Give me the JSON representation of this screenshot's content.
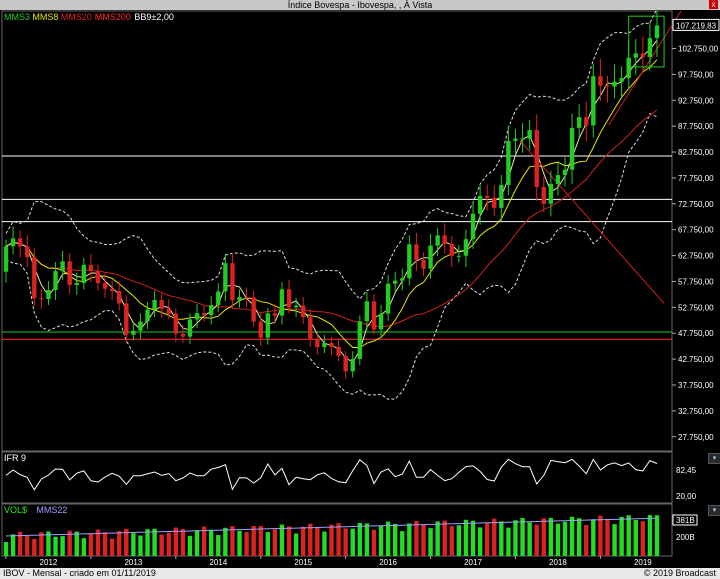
{
  "window": {
    "title": "Índice Bovespa - Ibovespa, , À Vista",
    "close_label": "x"
  },
  "footer": {
    "left": "IBOV - Mensal - criado em 01/11/2019",
    "right": "© 2019 Broadcast"
  },
  "legend": {
    "main": [
      {
        "label": "MMS3",
        "color": "#22cc22"
      },
      {
        "label": "MMS8",
        "color": "#e6e600"
      },
      {
        "label": "MMS20",
        "color": "#dd2222"
      },
      {
        "label": "MMS200",
        "color": "#ff2a2a"
      },
      {
        "label": "BB9±2,00",
        "color": "#ffffff"
      }
    ],
    "rsi": {
      "label": "IFR 9",
      "color": "#ffffff"
    },
    "volume": [
      {
        "label": "VOL$",
        "color": "#22ee22"
      },
      {
        "label": "MMS22",
        "color": "#a0a0ff"
      }
    ]
  },
  "chart_data": {
    "type": "candlestick",
    "title": "Índice Bovespa - Ibovespa, , À Vista",
    "period": "Mensal",
    "x_ticks": [
      "2012",
      "2013",
      "2014",
      "2015",
      "2016",
      "2017",
      "2018",
      "2019"
    ],
    "y_ticks": [
      "27.750,00",
      "32.750,00",
      "37.750,00",
      "42.750,00",
      "47.750,00",
      "52.750,00",
      "57.750,00",
      "62.750,00",
      "67.750,00",
      "72.750,00",
      "77.750,00",
      "82.750,00",
      "87.750,00",
      "92.750,00",
      "97.750,00",
      "102.750,00"
    ],
    "ylim": [
      25000,
      110000
    ],
    "last_price": "107.219,83",
    "horizontal_levels": [
      {
        "value": 82000,
        "color": "#ffffff"
      },
      {
        "value": 73600,
        "color": "#ffffff"
      },
      {
        "value": 69300,
        "color": "#ffffff"
      },
      {
        "value": 48000,
        "color": "#22cc22"
      },
      {
        "value": 46600,
        "color": "#ff3030"
      }
    ],
    "trend_lines": [
      {
        "color": "#cc2222",
        "points": [
          [
            2018.05,
            85000
          ],
          [
            2019.75,
            53500
          ]
        ]
      },
      {
        "color": "#cc2222",
        "points": [
          [
            2019.1,
            88000
          ],
          [
            2019.95,
            110000
          ]
        ]
      }
    ],
    "candles": [
      [
        59620,
        64540
      ],
      [
        64540,
        66070
      ],
      [
        66070,
        64510
      ],
      [
        64510,
        62450
      ],
      [
        62450,
        54490
      ],
      [
        54490,
        54350
      ],
      [
        54350,
        56100
      ],
      [
        56100,
        59760
      ],
      [
        59760,
        61640
      ],
      [
        61640,
        57070
      ],
      [
        57070,
        57470
      ],
      [
        57470,
        60950
      ],
      [
        60950,
        59760
      ],
      [
        59760,
        57420
      ],
      [
        57420,
        56350
      ],
      [
        56350,
        55910
      ],
      [
        55910,
        53510
      ],
      [
        53510,
        47460
      ],
      [
        47460,
        48230
      ],
      [
        48230,
        50010
      ],
      [
        50010,
        52340
      ],
      [
        52340,
        54160
      ],
      [
        54160,
        52480
      ],
      [
        52480,
        51510
      ],
      [
        51510,
        47640
      ],
      [
        47640,
        47090
      ],
      [
        47090,
        50410
      ],
      [
        50410,
        51630
      ],
      [
        51630,
        51240
      ],
      [
        51240,
        53170
      ],
      [
        53170,
        55820
      ],
      [
        55820,
        61280
      ],
      [
        61280,
        54120
      ],
      [
        54120,
        54720
      ],
      [
        54720,
        54680
      ],
      [
        54680,
        50010
      ],
      [
        50010,
        46900
      ],
      [
        46900,
        51580
      ],
      [
        51580,
        51150
      ],
      [
        51150,
        56230
      ],
      [
        56230,
        52760
      ],
      [
        52760,
        53080
      ],
      [
        53080,
        50860
      ],
      [
        50860,
        46620
      ],
      [
        46620,
        45060
      ],
      [
        45060,
        45870
      ],
      [
        45870,
        45120
      ],
      [
        45120,
        43350
      ],
      [
        43350,
        40400
      ],
      [
        40400,
        42790
      ],
      [
        42790,
        50060
      ],
      [
        50060,
        53910
      ],
      [
        53910,
        48470
      ],
      [
        48470,
        51530
      ],
      [
        51530,
        57310
      ],
      [
        57310,
        57900
      ],
      [
        57900,
        58370
      ],
      [
        58370,
        64920
      ],
      [
        64920,
        61910
      ],
      [
        61910,
        60230
      ],
      [
        60230,
        64670
      ],
      [
        64670,
        66660
      ],
      [
        66660,
        64980
      ],
      [
        64980,
        62710
      ],
      [
        62710,
        62710
      ],
      [
        62710,
        65920
      ],
      [
        65920,
        70840
      ],
      [
        70840,
        74290
      ],
      [
        74290,
        73900
      ],
      [
        73900,
        71970
      ],
      [
        71970,
        76400
      ],
      [
        76400,
        84910
      ],
      [
        84910,
        85350
      ],
      [
        85350,
        85360
      ],
      [
        85360,
        87000
      ],
      [
        87000,
        76000
      ],
      [
        76000,
        72760
      ],
      [
        72760,
        76600
      ],
      [
        76600,
        78300
      ],
      [
        78300,
        79340
      ],
      [
        79340,
        87420
      ],
      [
        87420,
        89500
      ],
      [
        89500,
        87890
      ],
      [
        87890,
        97390
      ],
      [
        97390,
        95580
      ],
      [
        95580,
        95410
      ],
      [
        95410,
        96350
      ],
      [
        96350,
        97030
      ],
      [
        97030,
        100970
      ],
      [
        100970,
        101810
      ],
      [
        101810,
        101130
      ],
      [
        101130,
        104750
      ],
      [
        104750,
        107220
      ]
    ],
    "rsi": {
      "last_value": "82,45",
      "ref_value": "20,00"
    },
    "volume": {
      "last_value": "381B",
      "ref_value": "200B"
    }
  }
}
